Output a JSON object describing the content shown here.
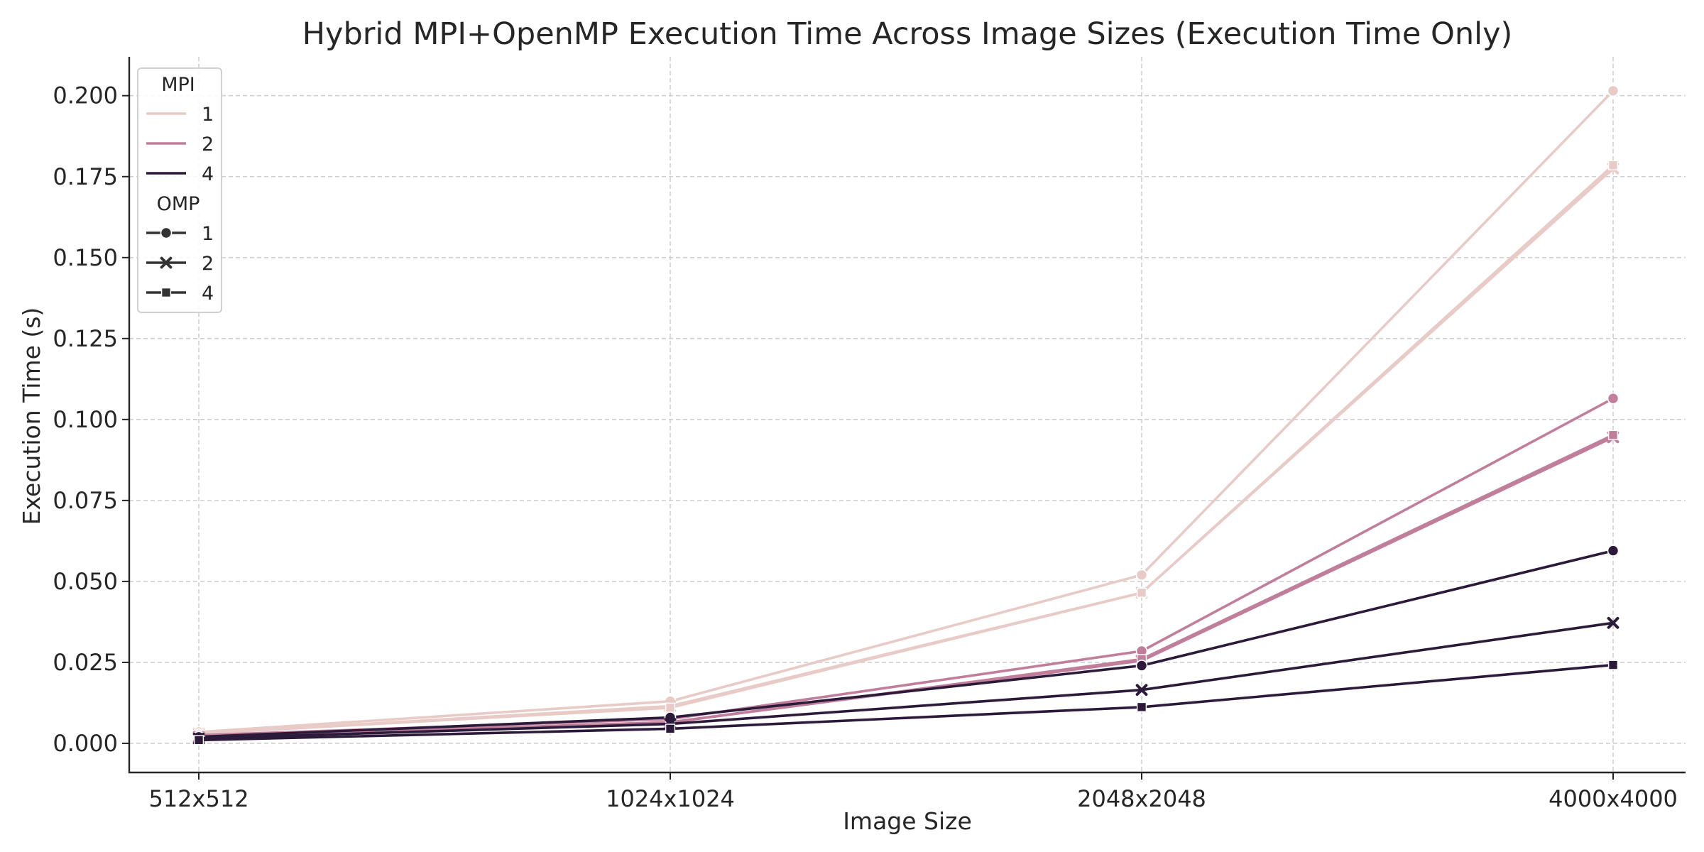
{
  "chart_data": {
    "type": "line",
    "title": "Hybrid MPI+OpenMP Execution Time Across Image Sizes (Execution Time Only)",
    "xlabel": "Image Size",
    "ylabel": "Execution Time (s)",
    "categories": [
      "512x512",
      "1024x1024",
      "2048x2048",
      "4000x4000"
    ],
    "ylim": [
      -0.009,
      0.212
    ],
    "yticks": [
      "0.000",
      "0.025",
      "0.050",
      "0.075",
      "0.100",
      "0.125",
      "0.150",
      "0.175",
      "0.200"
    ],
    "ytick_values": [
      0,
      0.025,
      0.05,
      0.075,
      0.1,
      0.125,
      0.15,
      0.175,
      0.2
    ],
    "grid": true,
    "legend_placement": "top-left",
    "legend": {
      "hue_title": "MPI",
      "hue_entries": [
        {
          "label": "1",
          "color": "#e8cbc6"
        },
        {
          "label": "2",
          "color": "#c07e9b"
        },
        {
          "label": "4",
          "color": "#2c1a3a"
        }
      ],
      "style_title": "OMP",
      "style_entries": [
        {
          "label": "1",
          "marker": "circle"
        },
        {
          "label": "2",
          "marker": "x"
        },
        {
          "label": "4",
          "marker": "square"
        }
      ]
    },
    "series": [
      {
        "mpi": "1",
        "omp": "1",
        "color": "#e8cbc6",
        "marker": "circle",
        "values": [
          0.0035,
          0.013,
          0.052,
          0.2015
        ]
      },
      {
        "mpi": "1",
        "omp": "2",
        "color": "#e8cbc6",
        "marker": "x",
        "values": [
          0.003,
          0.0115,
          0.0465,
          0.1775
        ]
      },
      {
        "mpi": "1",
        "omp": "4",
        "color": "#e8cbc6",
        "marker": "square",
        "values": [
          0.003,
          0.011,
          0.0465,
          0.1785
        ]
      },
      {
        "mpi": "2",
        "omp": "1",
        "color": "#c07e9b",
        "marker": "circle",
        "values": [
          0.0025,
          0.0075,
          0.0285,
          0.1065
        ]
      },
      {
        "mpi": "2",
        "omp": "2",
        "color": "#c07e9b",
        "marker": "x",
        "values": [
          0.002,
          0.0065,
          0.0255,
          0.0945
        ]
      },
      {
        "mpi": "2",
        "omp": "4",
        "color": "#c07e9b",
        "marker": "square",
        "values": [
          0.002,
          0.0065,
          0.026,
          0.0952
        ]
      },
      {
        "mpi": "4",
        "omp": "1",
        "color": "#2c1a3a",
        "marker": "circle",
        "values": [
          0.002,
          0.008,
          0.024,
          0.0595
        ]
      },
      {
        "mpi": "4",
        "omp": "2",
        "color": "#2c1a3a",
        "marker": "x",
        "values": [
          0.0015,
          0.006,
          0.0165,
          0.0372
        ]
      },
      {
        "mpi": "4",
        "omp": "4",
        "color": "#2c1a3a",
        "marker": "square",
        "values": [
          0.001,
          0.0045,
          0.0112,
          0.0242
        ]
      }
    ]
  }
}
